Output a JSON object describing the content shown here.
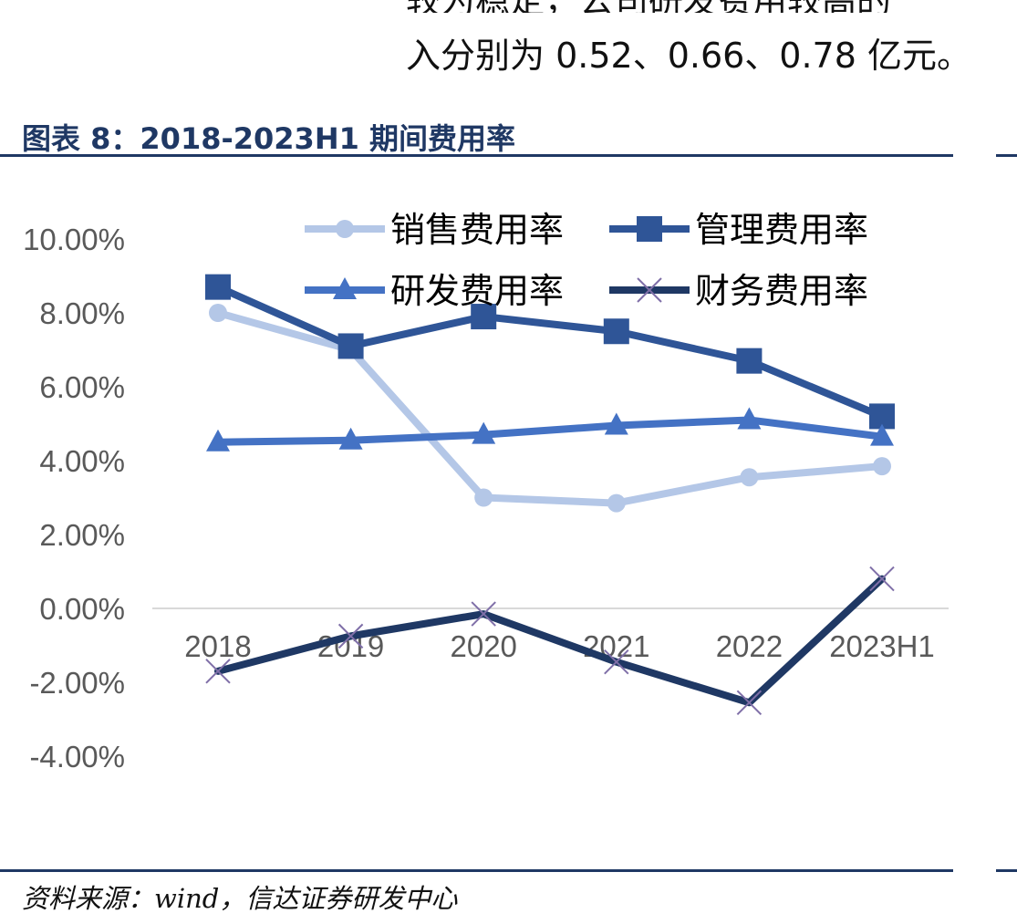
{
  "header_text": {
    "line1": "较为稳定，公司研发费用较高的",
    "line2": "入分别为 0.52、0.66、0.78 亿元。"
  },
  "figure": {
    "title": "图表 8：2018-2023H1 期间费用率",
    "source": "资料来源：wind，信达证券研发中心"
  },
  "chart_data": {
    "type": "line",
    "categories": [
      "2018",
      "2019",
      "2020",
      "2021",
      "2022",
      "2023H1"
    ],
    "ylim": [
      -0.04,
      0.1
    ],
    "yticks": [
      0.1,
      0.08,
      0.06,
      0.04,
      0.02,
      0.0,
      -0.02,
      -0.04
    ],
    "ytick_labels": [
      "10.00%",
      "8.00%",
      "6.00%",
      "4.00%",
      "2.00%",
      "0.00%",
      "-2.00%",
      "-4.00%"
    ],
    "grid": false,
    "legend_position": "top",
    "series": [
      {
        "name": "销售费用率",
        "values": [
          0.08,
          0.07,
          0.03,
          0.0285,
          0.0355,
          0.0385
        ],
        "color": "#b4c7e7",
        "marker": "circle"
      },
      {
        "name": "管理费用率",
        "values": [
          0.087,
          0.071,
          0.079,
          0.075,
          0.067,
          0.052
        ],
        "color": "#2f5597",
        "marker": "square"
      },
      {
        "name": "研发费用率",
        "values": [
          0.045,
          0.0455,
          0.047,
          0.0495,
          0.051,
          0.0465
        ],
        "color": "#4472c4",
        "marker": "triangle"
      },
      {
        "name": "财务费用率",
        "values": [
          -0.017,
          -0.0075,
          -0.0015,
          -0.0145,
          -0.0255,
          0.008
        ],
        "color": "#1f3864",
        "marker": "x"
      }
    ]
  }
}
